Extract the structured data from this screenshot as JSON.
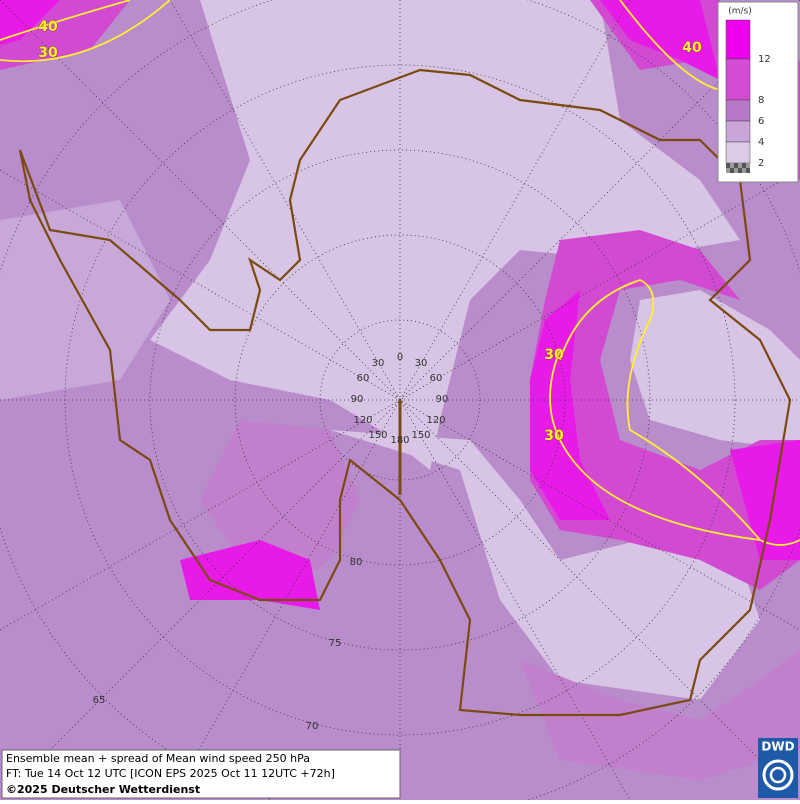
{
  "legend": {
    "unit": "(m/s)",
    "labels": [
      "12",
      "8",
      "6",
      "4",
      "2"
    ]
  },
  "contour_labels": [
    "40",
    "30",
    "40",
    "30",
    "30"
  ],
  "grid_labels": [
    "0",
    "30",
    "30",
    "60",
    "60",
    "90",
    "90",
    "120",
    "120",
    "150",
    "150",
    "180",
    "80",
    "75",
    "70",
    "65"
  ],
  "caption": {
    "line1": "Ensemble mean + spread of Mean wind speed 250 hPa",
    "line2": "FT: Tue 14 Oct 12 UTC [ICON EPS 2025 Oct 11 12UTC +72h]",
    "line3": "©2025 Deutscher Wetterdienst"
  },
  "logo": "DWD"
}
